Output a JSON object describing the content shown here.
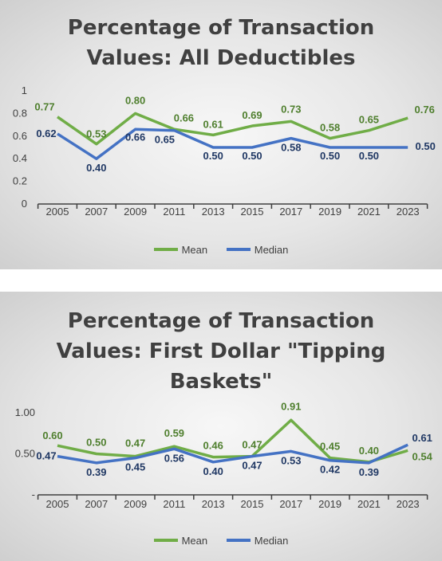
{
  "chart_data": [
    {
      "type": "line",
      "title_lines": [
        "Percentage of Transaction",
        "Values: All Deductibles"
      ],
      "categories": [
        "2005",
        "2007",
        "2009",
        "2011",
        "2013",
        "2015",
        "2017",
        "2019",
        "2021",
        "2023"
      ],
      "y_ticks": [
        "0",
        "0.2",
        "0.4",
        "0.6",
        "0.8",
        "1"
      ],
      "ylim": [
        0,
        1
      ],
      "grid": false,
      "legend_position": "bottom",
      "series": [
        {
          "name": "Mean",
          "color": "#70AD47",
          "values": [
            0.77,
            0.53,
            0.8,
            0.66,
            0.61,
            0.69,
            0.73,
            0.58,
            0.65,
            0.76
          ],
          "labels": [
            "0.77",
            "0.53",
            "0.80",
            "0.66",
            "0.61",
            "0.69",
            "0.73",
            "0.58",
            "0.65",
            "0.76"
          ]
        },
        {
          "name": "Median",
          "color": "#4472C4",
          "values": [
            0.62,
            0.4,
            0.66,
            0.65,
            0.5,
            0.5,
            0.58,
            0.5,
            0.5,
            0.5
          ],
          "labels": [
            "0.62",
            "0.40",
            "0.66",
            "0.65",
            "0.50",
            "0.50",
            "0.58",
            "0.50",
            "0.50",
            "0.50"
          ]
        }
      ]
    },
    {
      "type": "line",
      "title_lines": [
        "Percentage of Transaction",
        "Values: First Dollar \"Tipping",
        "Baskets\""
      ],
      "categories": [
        "2005",
        "2007",
        "2009",
        "2011",
        "2013",
        "2015",
        "2017",
        "2019",
        "2021",
        "2023"
      ],
      "y_ticks": [
        "-",
        "0.50",
        "1.00"
      ],
      "ylim": [
        0,
        1
      ],
      "grid": false,
      "legend_position": "bottom",
      "series": [
        {
          "name": "Mean",
          "color": "#70AD47",
          "values": [
            0.6,
            0.5,
            0.47,
            0.59,
            0.46,
            0.47,
            0.91,
            0.45,
            0.4,
            0.54
          ],
          "labels": [
            "0.60",
            "0.50",
            "0.47",
            "0.59",
            "0.46",
            "0.47",
            "0.91",
            "0.45",
            "0.40",
            "0.54"
          ]
        },
        {
          "name": "Median",
          "color": "#4472C4",
          "values": [
            0.47,
            0.39,
            0.45,
            0.56,
            0.4,
            0.47,
            0.53,
            0.42,
            0.39,
            0.61
          ],
          "labels": [
            "0.47",
            "0.39",
            "0.45",
            "0.56",
            "0.40",
            "0.47",
            "0.53",
            "0.42",
            "0.39",
            "0.61"
          ]
        }
      ]
    }
  ]
}
